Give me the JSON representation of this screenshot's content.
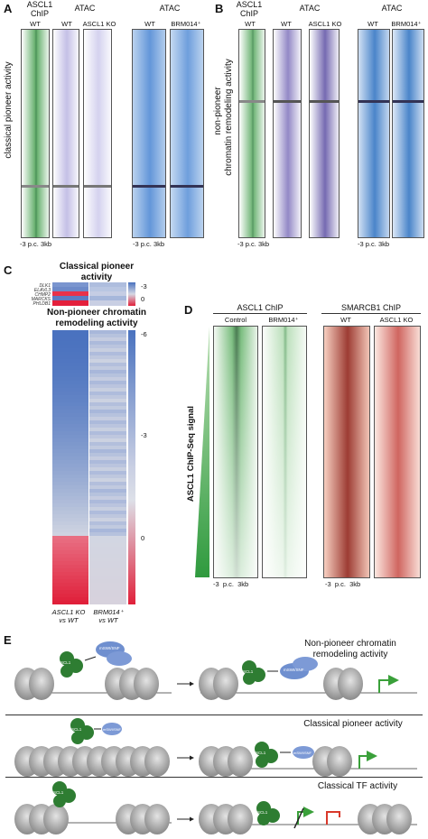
{
  "panelA": {
    "letter": "A",
    "chip_header": "ASCL1\nChIP",
    "atac1_header": "ATAC",
    "atac2_header": "ATAC",
    "col_labels": [
      "WT",
      "WT",
      "ASCL1 KO",
      "WT",
      "BRM014⁺"
    ],
    "side_label": "classical pioneer activity",
    "axis": [
      "-3",
      "p.c.",
      "3kb"
    ]
  },
  "panelB": {
    "letter": "B",
    "chip_header": "ASCL1\nChIP",
    "atac1_header": "ATAC",
    "atac2_header": "ATAC",
    "col_labels": [
      "WT",
      "WT",
      "ASCL1 KO",
      "WT",
      "BRM014⁺"
    ],
    "side_label_1": "non-pioneer",
    "side_label_2": "chromatin remodeling activity",
    "axis": [
      "-3",
      "p.c.",
      "3kb"
    ]
  },
  "panelC": {
    "letter": "C",
    "title1": "Classical pioneer activity",
    "title2": "Non-pioneer chromatin remodeling activity",
    "top_scale": [
      "-3",
      "0"
    ],
    "scale_ticks": [
      "-6",
      "-3",
      "0"
    ],
    "genes_top": [
      "DLK1",
      "ELAVL3",
      "CHMP2",
      "MARCKS",
      "PHLDB1"
    ],
    "col_labels": [
      "ASCL1 KO vs WT",
      "BRM014⁺ vs WT"
    ]
  },
  "panelD": {
    "letter": "D",
    "ascl1_header": "ASCL1 ChIP",
    "smarcb1_header": "SMARCB1 ChIP",
    "col_labels": [
      "Control",
      "BRM014⁺",
      "WT",
      "ASCL1 KO"
    ],
    "side_label": "ASCL1 ChIP-Seq signal",
    "axis": [
      "-3",
      "p.c.",
      "3kb"
    ]
  },
  "panelE": {
    "letter": "E",
    "row1_title": "Non-pioneer chromatin remodeling activity",
    "row2_title": "Classical pioneer activity",
    "row3_title": "Classical TF activity",
    "ascl1": "ASCL1",
    "swisnf": "mSWI/SNF"
  },
  "colors": {
    "green": "#1f8a2e",
    "purple": "#4b3aa0",
    "blue": "#2a6fc0",
    "red": "#c0322b",
    "heat_blue": "#4a72bf",
    "heat_red": "#e0203a"
  }
}
